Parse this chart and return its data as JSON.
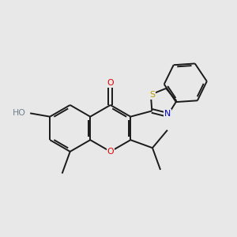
{
  "background_color": "#e8e8e8",
  "bond_color": "#1a1a1a",
  "atom_colors": {
    "O": "#dd0000",
    "N": "#0000cc",
    "S": "#b8a000",
    "H": "#708090",
    "C": "#1a1a1a"
  },
  "figsize": [
    3.0,
    3.0
  ],
  "dpi": 100,
  "lw": 1.4
}
